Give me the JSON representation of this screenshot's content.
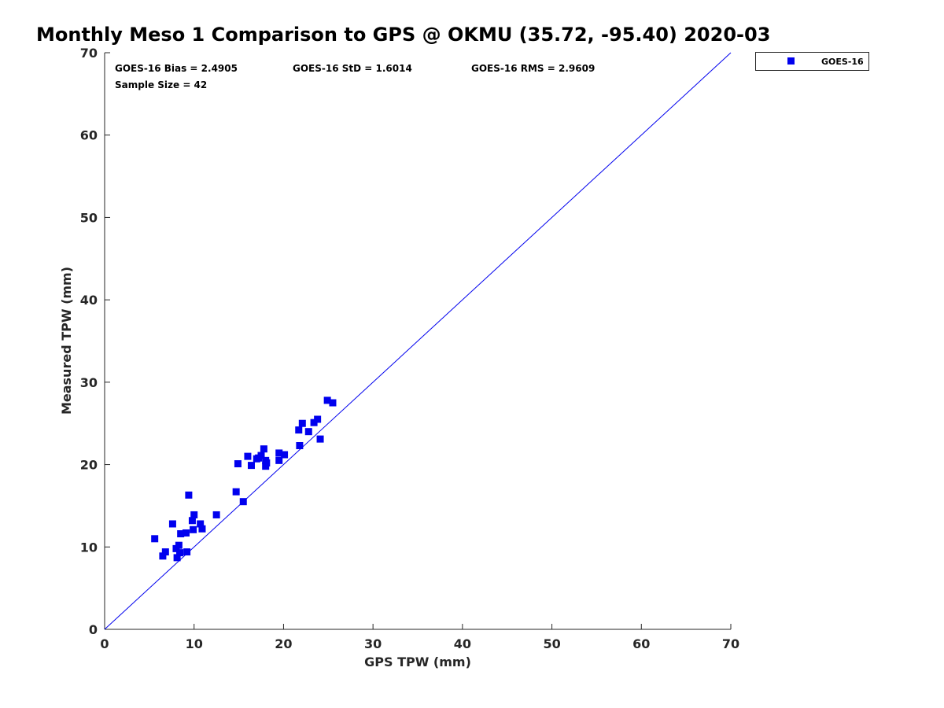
{
  "chart_data": {
    "type": "scatter",
    "title": "Monthly Meso 1 Comparison to GPS @ OKMU (35.72, -95.40) 2020-03",
    "xlabel": "GPS TPW (mm)",
    "ylabel": "Measured TPW (mm)",
    "xlim": [
      0,
      70
    ],
    "ylim": [
      0,
      70
    ],
    "xticks": [
      "0",
      "10",
      "20",
      "30",
      "40",
      "50",
      "60",
      "70"
    ],
    "yticks": [
      "0",
      "10",
      "20",
      "30",
      "40",
      "50",
      "60",
      "70"
    ],
    "grid": false,
    "legend_position": "top-right-outside",
    "stats": {
      "bias": "GOES-16 Bias = 2.4905",
      "std": "GOES-16 StD = 1.6014",
      "rms": "GOES-16 RMS = 2.9609",
      "sample": "Sample Size = 42"
    },
    "reference_line": {
      "x": [
        0,
        70
      ],
      "y": [
        0,
        70
      ],
      "color": "#0000ee"
    },
    "series": [
      {
        "name": "GOES-16",
        "color": "#0000ee",
        "marker": "square",
        "points": [
          [
            5.6,
            11.0
          ],
          [
            6.5,
            8.9
          ],
          [
            6.8,
            9.4
          ],
          [
            7.6,
            12.8
          ],
          [
            8.0,
            9.8
          ],
          [
            8.1,
            8.7
          ],
          [
            8.3,
            10.2
          ],
          [
            8.4,
            9.3
          ],
          [
            8.5,
            11.6
          ],
          [
            9.1,
            11.7
          ],
          [
            9.2,
            9.4
          ],
          [
            9.4,
            16.3
          ],
          [
            9.8,
            13.2
          ],
          [
            9.9,
            12.1
          ],
          [
            10.0,
            13.9
          ],
          [
            10.7,
            12.8
          ],
          [
            10.9,
            12.2
          ],
          [
            12.5,
            13.9
          ],
          [
            14.7,
            16.7
          ],
          [
            14.9,
            20.1
          ],
          [
            15.5,
            15.5
          ],
          [
            16.0,
            21.0
          ],
          [
            16.4,
            19.9
          ],
          [
            17.0,
            20.7
          ],
          [
            17.5,
            21.1
          ],
          [
            17.8,
            21.9
          ],
          [
            18.0,
            20.5
          ],
          [
            18.0,
            19.8
          ],
          [
            19.5,
            21.4
          ],
          [
            19.5,
            20.5
          ],
          [
            20.1,
            21.2
          ],
          [
            21.7,
            24.2
          ],
          [
            21.8,
            22.3
          ],
          [
            22.1,
            25.0
          ],
          [
            22.8,
            24.0
          ],
          [
            23.4,
            25.1
          ],
          [
            23.8,
            25.5
          ],
          [
            24.1,
            23.1
          ],
          [
            24.9,
            27.8
          ],
          [
            25.5,
            27.5
          ],
          [
            17.2,
            20.8
          ],
          [
            18.1,
            20.2
          ]
        ]
      }
    ]
  }
}
